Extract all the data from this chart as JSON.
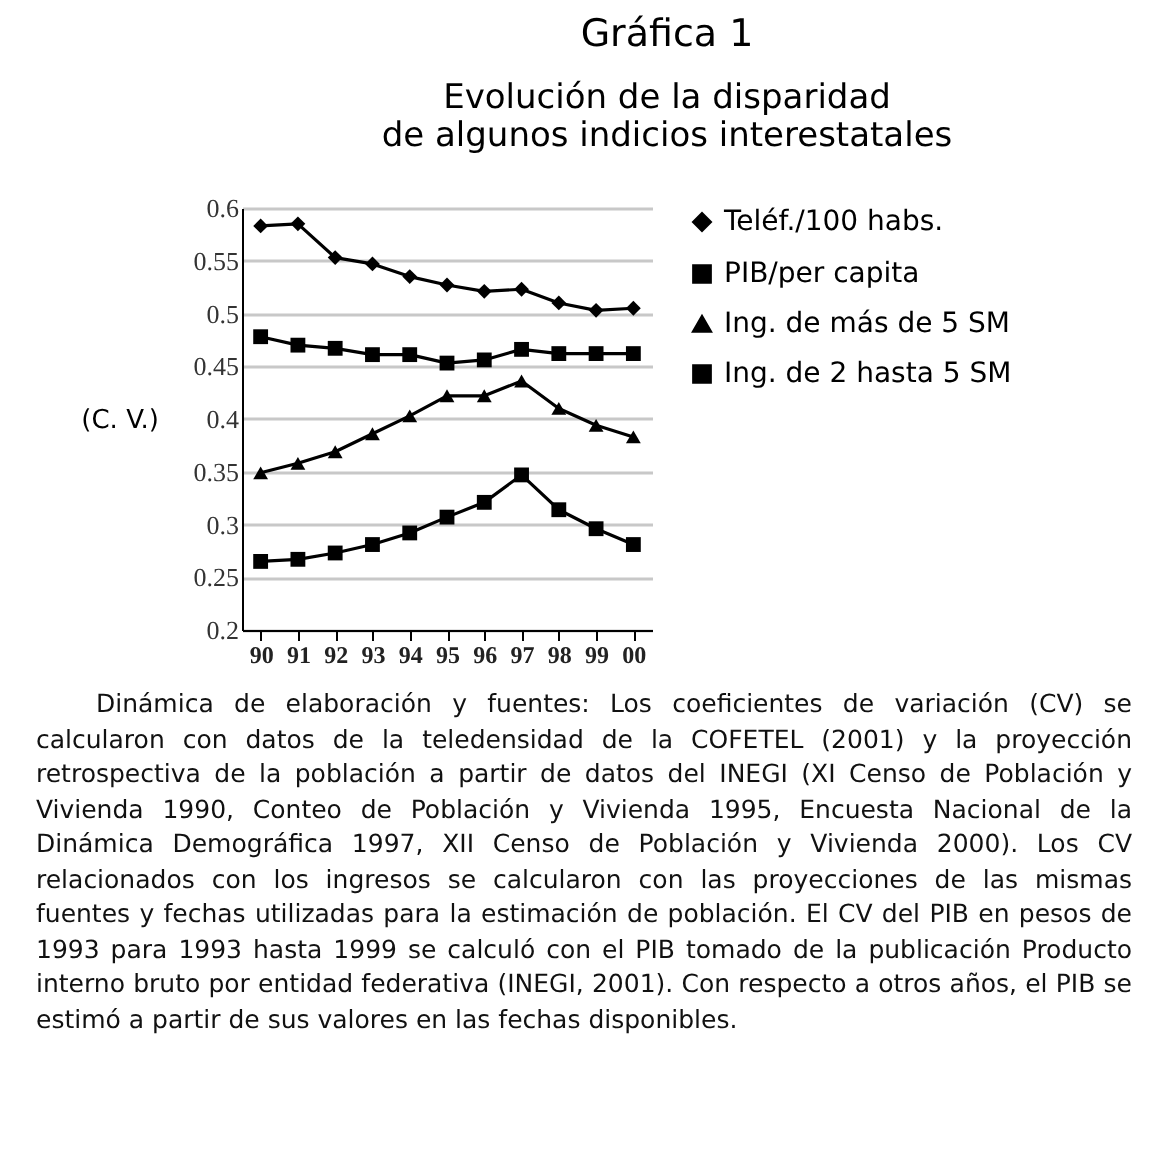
{
  "chart_data": {
    "type": "line",
    "title": "Gráfica 1",
    "subtitle": "Evolución de la disparidad\nde algunos indicios interestatales",
    "ylabel": "(C. V.)",
    "categories": [
      "90",
      "91",
      "92",
      "93",
      "94",
      "95",
      "96",
      "97",
      "98",
      "99",
      "00"
    ],
    "series": [
      {
        "name": "Teléf./100 habs.",
        "color": "#000000",
        "marker": "diamond",
        "values": [
          0.583,
          0.585,
          0.553,
          0.547,
          0.535,
          0.527,
          0.521,
          0.523,
          0.51,
          0.503,
          0.505
        ]
      },
      {
        "name": "PIB/per capita",
        "color": "#000000",
        "marker": "square",
        "values": [
          0.478,
          0.47,
          0.467,
          0.461,
          0.461,
          0.453,
          0.456,
          0.466,
          0.462,
          0.462,
          0.462
        ]
      },
      {
        "name": "Ing. de más de 5 SM",
        "color": "#000000",
        "marker": "triangle",
        "values": [
          0.349,
          0.358,
          0.369,
          0.386,
          0.403,
          0.422,
          0.422,
          0.436,
          0.41,
          0.394,
          0.383
        ]
      },
      {
        "name": "Ing. de 2 hasta 5 SM",
        "color": "#000000",
        "marker": "square",
        "values": [
          0.265,
          0.267,
          0.273,
          0.281,
          0.292,
          0.307,
          0.321,
          0.347,
          0.314,
          0.296,
          0.281
        ]
      }
    ],
    "ylim": [
      0.2,
      0.6
    ],
    "yticks": [
      0.2,
      0.25,
      0.3,
      0.35,
      0.4,
      0.45,
      0.5,
      0.55,
      0.6
    ],
    "grid": "y",
    "legend": "right",
    "line_style": "solid",
    "annotations": [
      "Dinámica de elaboración y fuentes: Los coeficientes de variación (CV) se calcularon con datos de la teledensidad de la COFETEL (2001) y la proyección retrospectiva de la población a partir de datos del INEGI (XI Censo de Población y Vivienda 1990, Conteo de Población y Vivienda 1995, Encuesta Nacional de la Dinámica Demográfica 1997, XII Censo de Población y Vivienda 2000). Los CV relacionados con los ingresos se calcularon con las proyecciones de las mismas fuentes y fechas utilizadas para la estimación de población. El CV del PIB en pesos de 1993 para 1993 hasta 1999 se calculó con el PIB tomado de la publicación Producto interno bruto por entidad federativa (INEGI, 2001). Con respecto a otros años, el PIB se estimó a partir de sus valores en las fechas disponibles."
    ]
  }
}
